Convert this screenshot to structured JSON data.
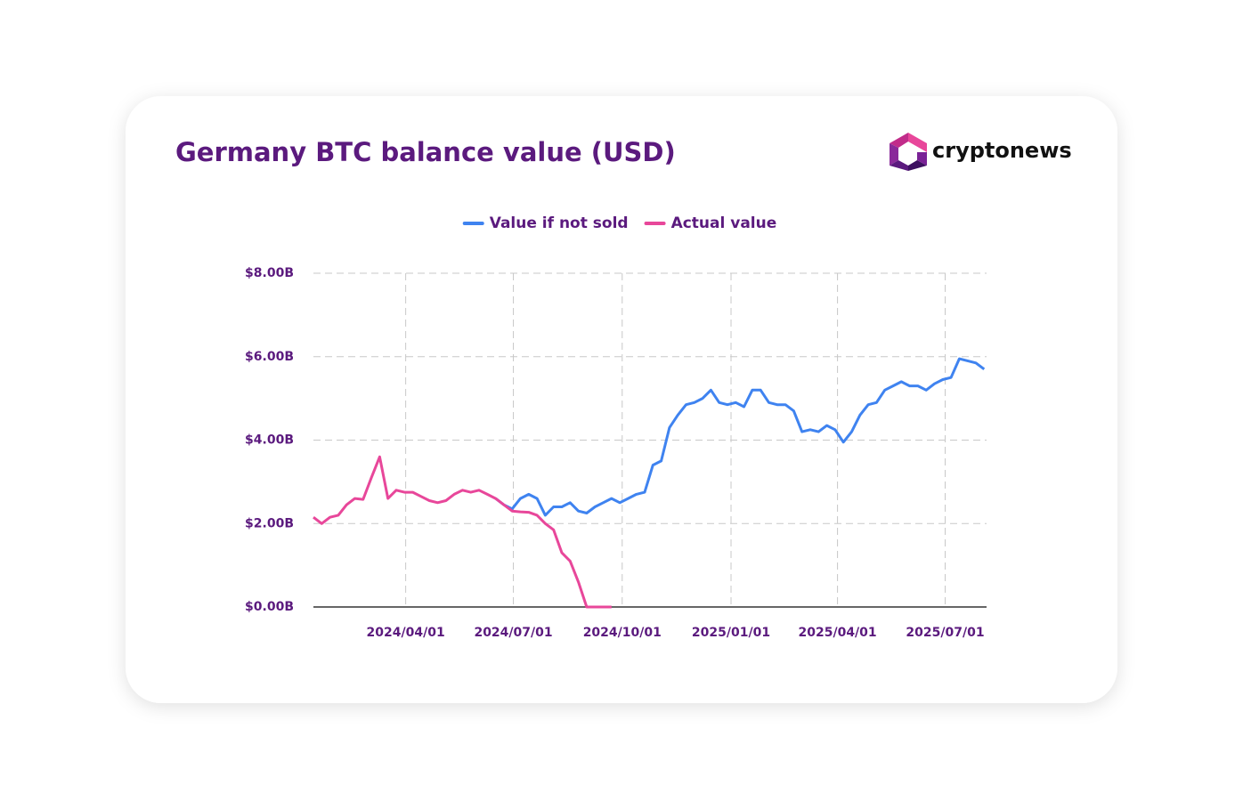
{
  "chart_data": {
    "type": "line",
    "title": "Germany BTC balance value (USD)",
    "logo": "cryptonews",
    "x": [
      "2024/01/14",
      "2024/01/21",
      "2024/01/28",
      "2024/02/04",
      "2024/02/11",
      "2024/02/18",
      "2024/02/25",
      "2024/03/03",
      "2024/03/10",
      "2024/03/17",
      "2024/03/24",
      "2024/03/31",
      "2024/04/07",
      "2024/04/14",
      "2024/04/21",
      "2024/04/28",
      "2024/05/05",
      "2024/05/12",
      "2024/05/19",
      "2024/05/26",
      "2024/06/02",
      "2024/06/09",
      "2024/06/16",
      "2024/06/23",
      "2024/06/30",
      "2024/07/07",
      "2024/07/14",
      "2024/07/21",
      "2024/07/28",
      "2024/08/04",
      "2024/08/11",
      "2024/08/18",
      "2024/08/25",
      "2024/09/01",
      "2024/09/08",
      "2024/09/15",
      "2024/09/22",
      "2024/09/29",
      "2024/10/06",
      "2024/10/13",
      "2024/10/20",
      "2024/10/27",
      "2024/11/03",
      "2024/11/10",
      "2024/11/17",
      "2024/11/24",
      "2024/12/01",
      "2024/12/08",
      "2024/12/15",
      "2024/12/22",
      "2024/12/29",
      "2025/01/05",
      "2025/01/12",
      "2025/01/19",
      "2025/01/26",
      "2025/02/02",
      "2025/02/09",
      "2025/02/16",
      "2025/02/23",
      "2025/03/02",
      "2025/03/09",
      "2025/03/16",
      "2025/03/23",
      "2025/03/30",
      "2025/04/06",
      "2025/04/13",
      "2025/04/20",
      "2025/04/27",
      "2025/05/04",
      "2025/05/11",
      "2025/05/18",
      "2025/05/25",
      "2025/06/01",
      "2025/06/08",
      "2025/06/15",
      "2025/06/22",
      "2025/06/29",
      "2025/07/06",
      "2025/07/13",
      "2025/07/20",
      "2025/07/27",
      "2025/08/03"
    ],
    "series": [
      {
        "name": "Value if not sold",
        "color": "#3f83f0",
        "values": [
          null,
          null,
          null,
          null,
          null,
          null,
          null,
          null,
          null,
          null,
          null,
          null,
          null,
          null,
          null,
          null,
          null,
          null,
          null,
          null,
          null,
          null,
          2.6,
          2.45,
          2.35,
          2.6,
          2.7,
          2.6,
          2.2,
          2.4,
          2.4,
          2.5,
          2.3,
          2.25,
          2.4,
          2.5,
          2.6,
          2.5,
          2.6,
          2.7,
          2.75,
          3.4,
          3.5,
          4.3,
          4.6,
          4.85,
          4.9,
          5.0,
          5.2,
          4.9,
          4.85,
          4.9,
          4.8,
          5.2,
          5.2,
          4.9,
          4.85,
          4.85,
          4.7,
          4.2,
          4.25,
          4.2,
          4.35,
          4.25,
          3.95,
          4.2,
          4.6,
          4.85,
          4.9,
          5.2,
          5.3,
          5.4,
          5.3,
          5.3,
          5.2,
          5.35,
          5.45,
          5.5,
          5.95,
          5.9,
          5.85,
          5.7
        ]
      },
      {
        "name": "Actual value",
        "color": "#e8479a",
        "values": [
          2.15,
          2.0,
          2.15,
          2.2,
          2.45,
          2.6,
          2.58,
          3.1,
          3.6,
          2.6,
          2.8,
          2.75,
          2.75,
          2.65,
          2.55,
          2.5,
          2.55,
          2.7,
          2.8,
          2.75,
          2.8,
          2.7,
          2.6,
          2.45,
          2.3,
          2.28,
          2.27,
          2.2,
          2.0,
          1.85,
          1.3,
          1.1,
          0.6,
          0,
          0,
          0,
          0,
          null,
          null,
          null,
          null,
          null,
          null,
          null,
          null,
          null,
          null,
          null,
          null,
          null,
          null,
          null,
          null,
          null,
          null,
          null,
          null,
          null,
          null,
          null,
          null,
          null,
          null,
          null,
          null,
          null,
          null,
          null,
          null,
          null,
          null,
          null,
          null,
          null,
          null,
          null,
          null,
          null,
          null,
          null,
          null,
          null
        ]
      }
    ],
    "xlim": [
      "2024/01/14",
      "2025/08/05"
    ],
    "xticks": [
      "2024/04/01",
      "2024/07/01",
      "2024/10/01",
      "2025/01/01",
      "2025/04/01",
      "2025/07/01"
    ],
    "ylim": [
      0,
      8
    ],
    "yticks": [
      {
        "value": 0,
        "label": "$0.00B"
      },
      {
        "value": 2,
        "label": "$2.00B"
      },
      {
        "value": 4,
        "label": "$4.00B"
      },
      {
        "value": 6,
        "label": "$6.00B"
      },
      {
        "value": 8,
        "label": "$8.00B"
      }
    ],
    "grid": true,
    "legend": "top"
  }
}
